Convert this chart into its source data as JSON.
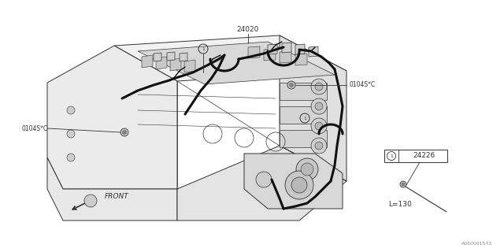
{
  "bg_color": "#ffffff",
  "lc": "#333333",
  "lc_thin": "#555555",
  "wire_color": "#111111",
  "fig_width": 6.4,
  "fig_height": 3.2,
  "dpi": 100,
  "watermark": "A050001573",
  "label_24020": "24020",
  "label_24226": "24226",
  "label_0104SC": "0104S*C",
  "label_front": "FRONT",
  "label_L130": "L=130",
  "fs": 6.5,
  "fs_sm": 5.5,
  "fs_tiny": 5
}
